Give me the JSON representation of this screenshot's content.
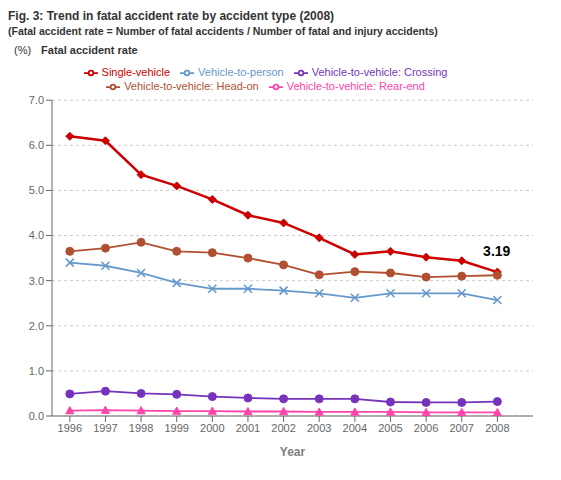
{
  "chart_data": {
    "type": "line",
    "title": "Fig. 3: Trend in fatal accident rate by accident type  (2008)",
    "subtitle": "(Fatal accident rate = Number of fatal accidents / Number of fatal and injury accidents)",
    "x_label": "Year",
    "y_label": "Fatal accident rate",
    "y_unit": "(%)",
    "x": [
      1996,
      1997,
      1998,
      1999,
      2000,
      2001,
      2002,
      2003,
      2004,
      2005,
      2006,
      2007,
      2008
    ],
    "xlim": [
      1995.5,
      2009.0
    ],
    "xticks": [
      1996,
      1997,
      1998,
      1999,
      2000,
      2001,
      2002,
      2003,
      2004,
      2005,
      2006,
      2007,
      2008
    ],
    "ylim": [
      0.0,
      7.0
    ],
    "yticks": [
      {
        "value": 0,
        "label": "0.0"
      },
      {
        "value": 1,
        "label": "1.0"
      },
      {
        "value": 2,
        "label": "2.0"
      },
      {
        "value": 3,
        "label": "3.0"
      },
      {
        "value": 4,
        "label": "4.0"
      },
      {
        "value": 5,
        "label": "5.0"
      },
      {
        "value": 6,
        "label": "6.0"
      },
      {
        "value": 7,
        "label": "7.0"
      }
    ],
    "grid": true,
    "legend": "top",
    "annotations": [
      {
        "text": "3.19",
        "x": 2007.6,
        "y": 3.55
      }
    ],
    "series": [
      {
        "name": "Single-vehicle",
        "color": "#cc0000",
        "marker": "diamond",
        "line_style": "solid",
        "values": [
          6.2,
          6.1,
          5.35,
          5.1,
          4.8,
          4.45,
          4.28,
          3.95,
          3.58,
          3.65,
          3.52,
          3.44,
          3.19
        ]
      },
      {
        "name": "Vehicle-to-vehicle: Head-on",
        "color": "#b05030",
        "marker": "circle",
        "line_style": "solid",
        "values": [
          3.65,
          3.72,
          3.85,
          3.65,
          3.62,
          3.5,
          3.35,
          3.13,
          3.2,
          3.17,
          3.08,
          3.1,
          3.12
        ]
      },
      {
        "name": "Vehicle-to-vehicle: Rear-end",
        "color": "#ff44aa",
        "marker": "triangle",
        "line_style": "solid",
        "values": [
          0.12,
          0.13,
          0.12,
          0.11,
          0.11,
          0.1,
          0.1,
          0.09,
          0.09,
          0.09,
          0.08,
          0.08,
          0.08
        ]
      },
      {
        "name": "Vehicle-to-vehicle: Crossing",
        "color": "#7733bb",
        "marker": "circle",
        "line_style": "solid",
        "values": [
          0.49,
          0.55,
          0.5,
          0.48,
          0.43,
          0.4,
          0.38,
          0.38,
          0.38,
          0.31,
          0.3,
          0.3,
          0.32
        ]
      },
      {
        "name": "Vehicle-to-person",
        "color": "#6699cc",
        "marker": "x",
        "line_style": "solid",
        "values": [
          3.4,
          3.33,
          3.17,
          2.95,
          2.82,
          2.82,
          2.78,
          2.72,
          2.62,
          2.72,
          2.72,
          2.72,
          2.57
        ]
      }
    ]
  }
}
